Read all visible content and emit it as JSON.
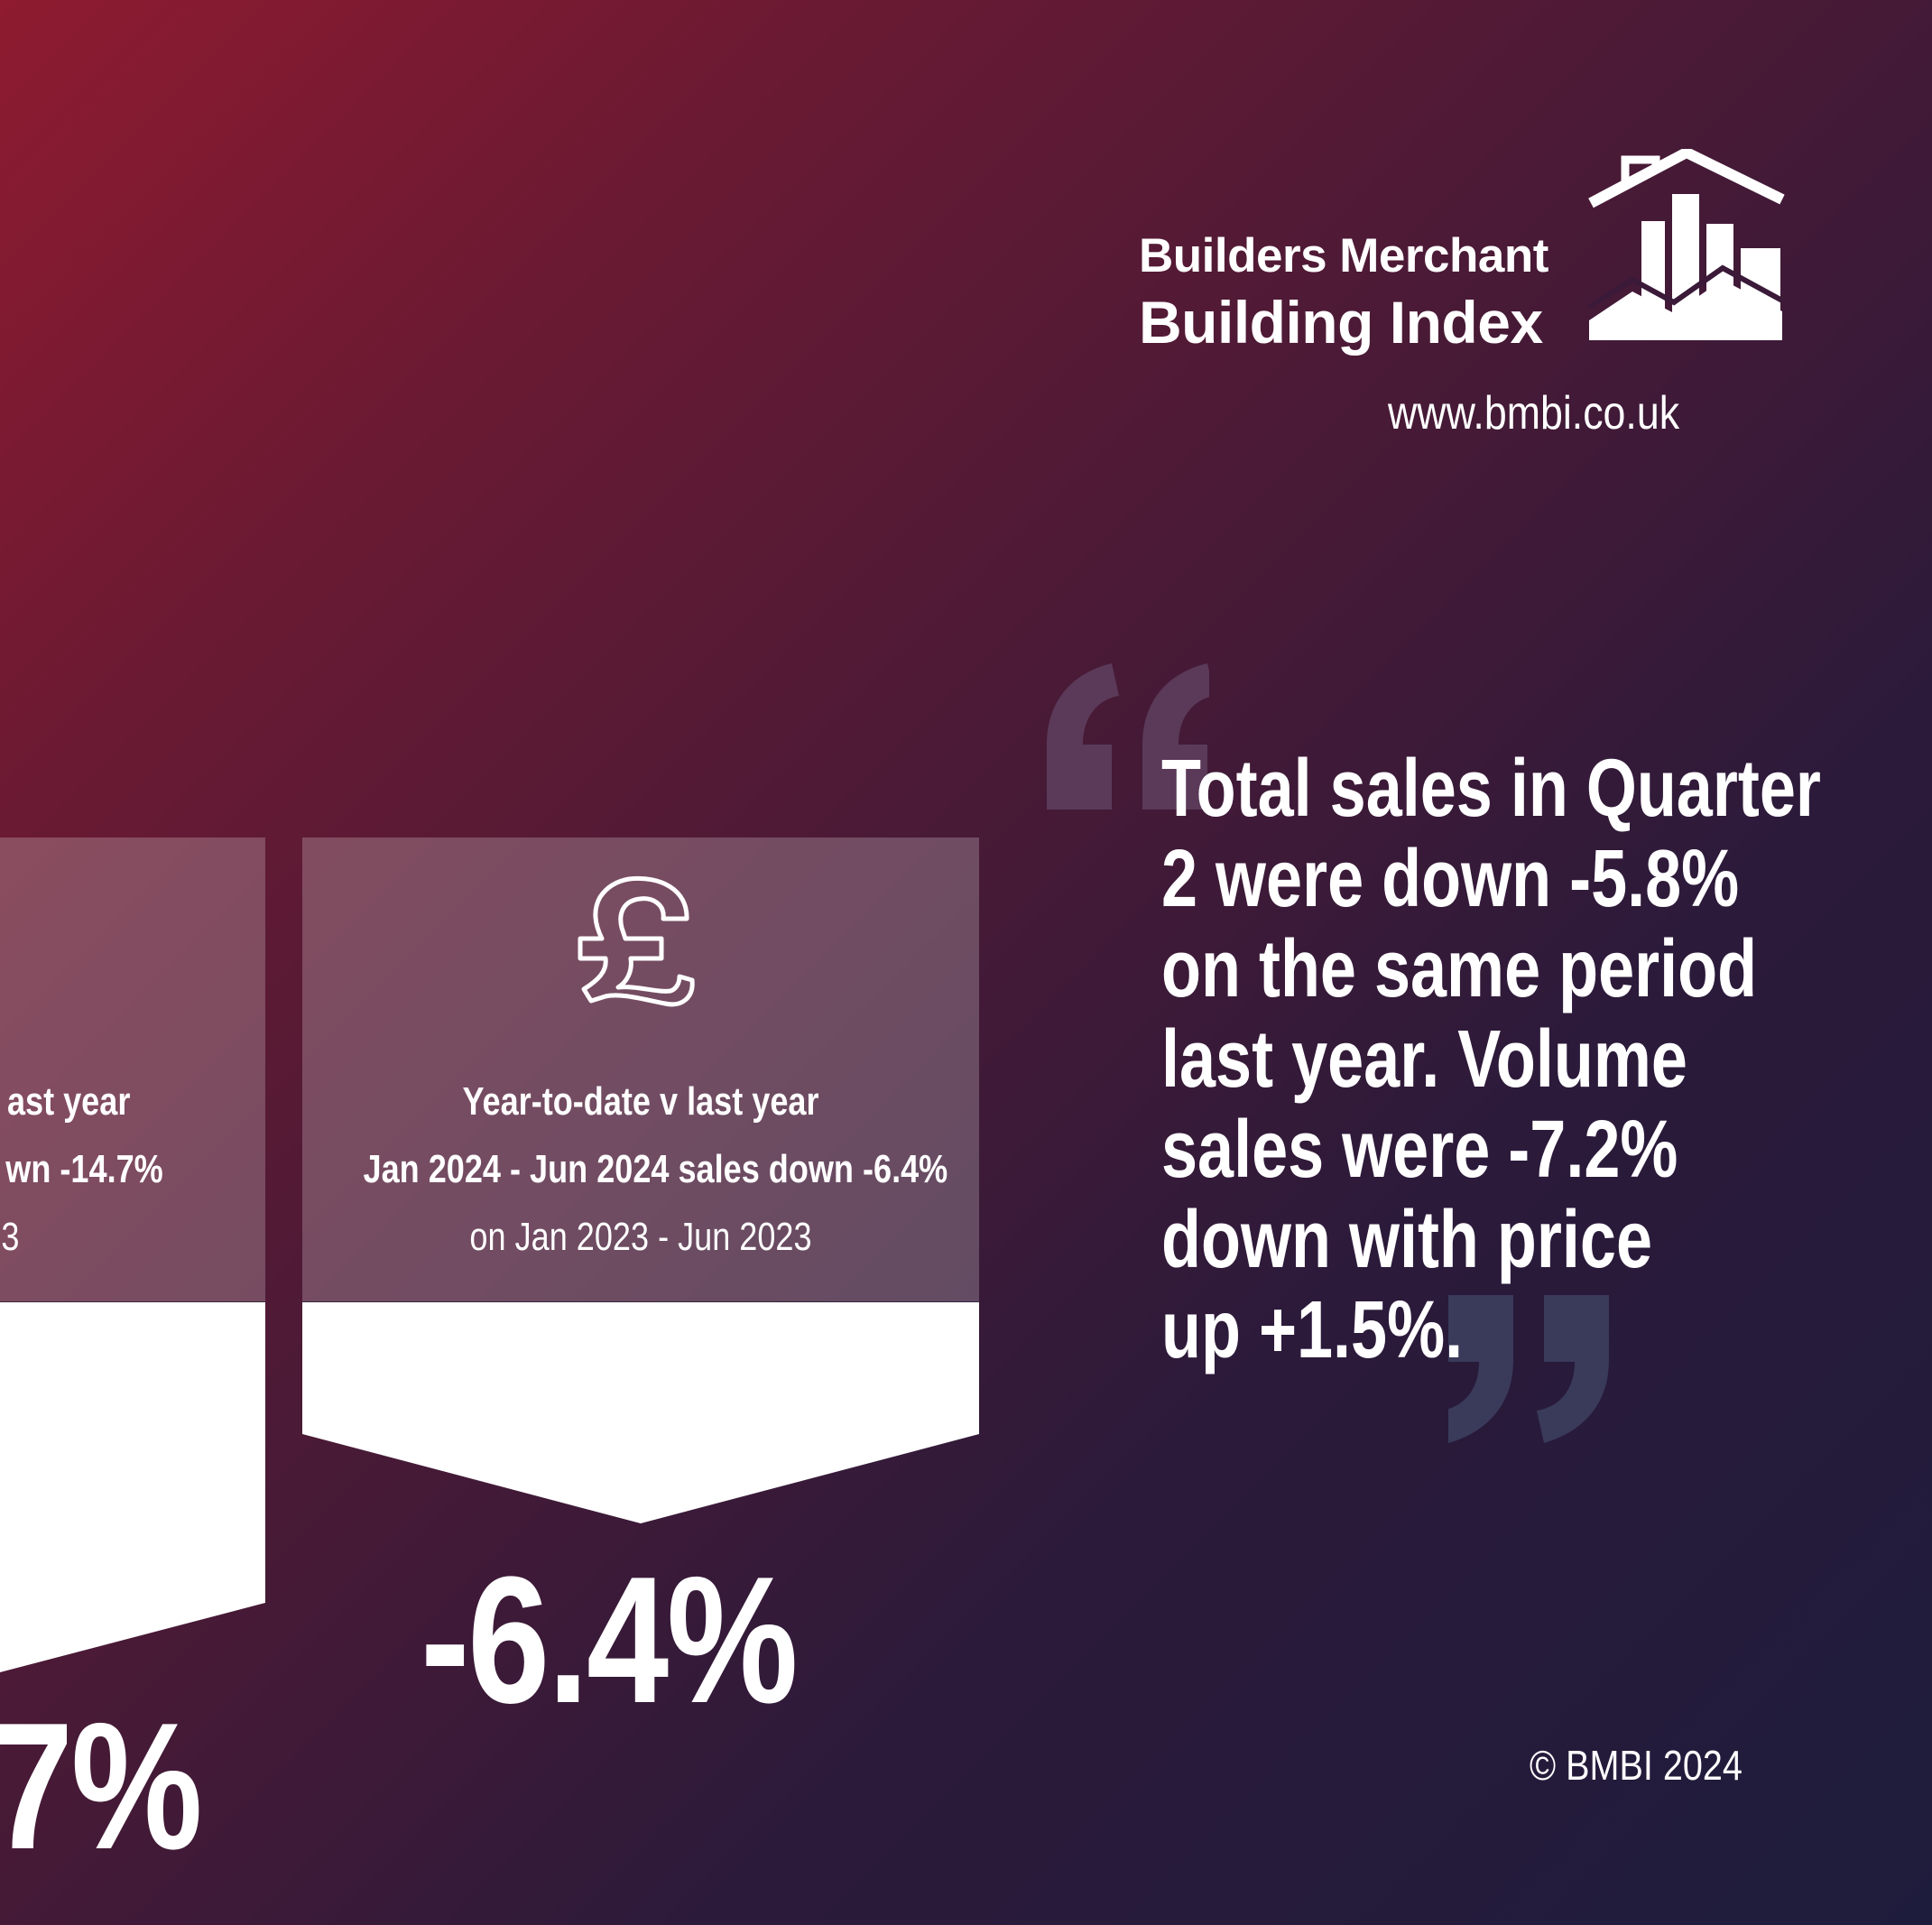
{
  "brand": {
    "line1": "Builders Merchant",
    "line2": "Building Index",
    "website": "www.bmbi.co.uk",
    "icon": "house-bar-chart-logo"
  },
  "left_card": {
    "title": "ast year",
    "line2": "wn -14.7%",
    "line3": "3",
    "value": "7%"
  },
  "right_card": {
    "icon": "pound-sign-icon",
    "title": "Year-to-date v last year",
    "line2": "Jan 2024 - Jun 2024 sales down -6.4%",
    "line3": "on Jan 2023 - Jun 2023",
    "value": "-6.4%"
  },
  "quote": {
    "lines": [
      "Total sales in Quarter",
      "2 were down -5.8%",
      "on the same period",
      "last year. Volume",
      "sales were -7.2%",
      "down with price",
      "up +1.5%."
    ]
  },
  "footer": {
    "copyright": "© BMBI 2024"
  }
}
